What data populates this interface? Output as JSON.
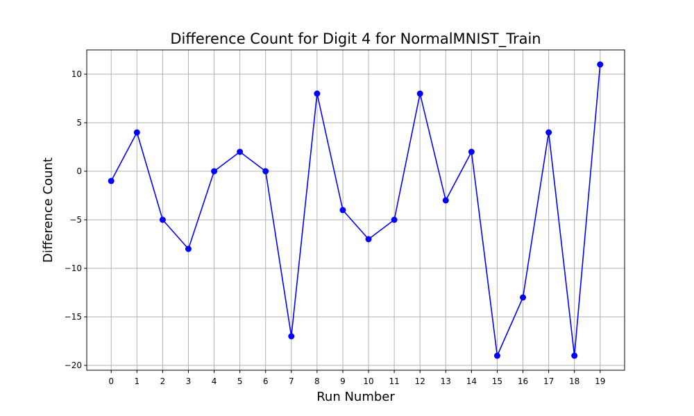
{
  "chart_data": {
    "type": "line",
    "title": "Difference Count for Digit 4 for NormalMNIST_Train",
    "xlabel": "Run Number",
    "ylabel": "Difference Count",
    "x": [
      0,
      1,
      2,
      3,
      4,
      5,
      6,
      7,
      8,
      9,
      10,
      11,
      12,
      13,
      14,
      15,
      16,
      17,
      18,
      19
    ],
    "y": [
      -1,
      4,
      -5,
      -8,
      0,
      2,
      0,
      -17,
      8,
      -4,
      -7,
      -5,
      8,
      -3,
      2,
      -19,
      -13,
      4,
      -19,
      11
    ],
    "xticks": [
      "0",
      "1",
      "2",
      "3",
      "4",
      "5",
      "6",
      "7",
      "8",
      "9",
      "10",
      "11",
      "12",
      "13",
      "14",
      "15",
      "16",
      "17",
      "18",
      "19"
    ],
    "yticks": [
      {
        "value": 10,
        "label": "10"
      },
      {
        "value": 5,
        "label": "5"
      },
      {
        "value": 0,
        "label": "0"
      },
      {
        "value": -5,
        "label": "−5"
      },
      {
        "value": -10,
        "label": "−10"
      },
      {
        "value": -15,
        "label": "−15"
      },
      {
        "value": -20,
        "label": "−20"
      }
    ],
    "xlim": [
      -0.95,
      19.95
    ],
    "ylim": [
      -20.5,
      12.5
    ],
    "grid": true,
    "marker": "circle",
    "line_color": "#0000ff",
    "marker_color": "#0000ff"
  }
}
